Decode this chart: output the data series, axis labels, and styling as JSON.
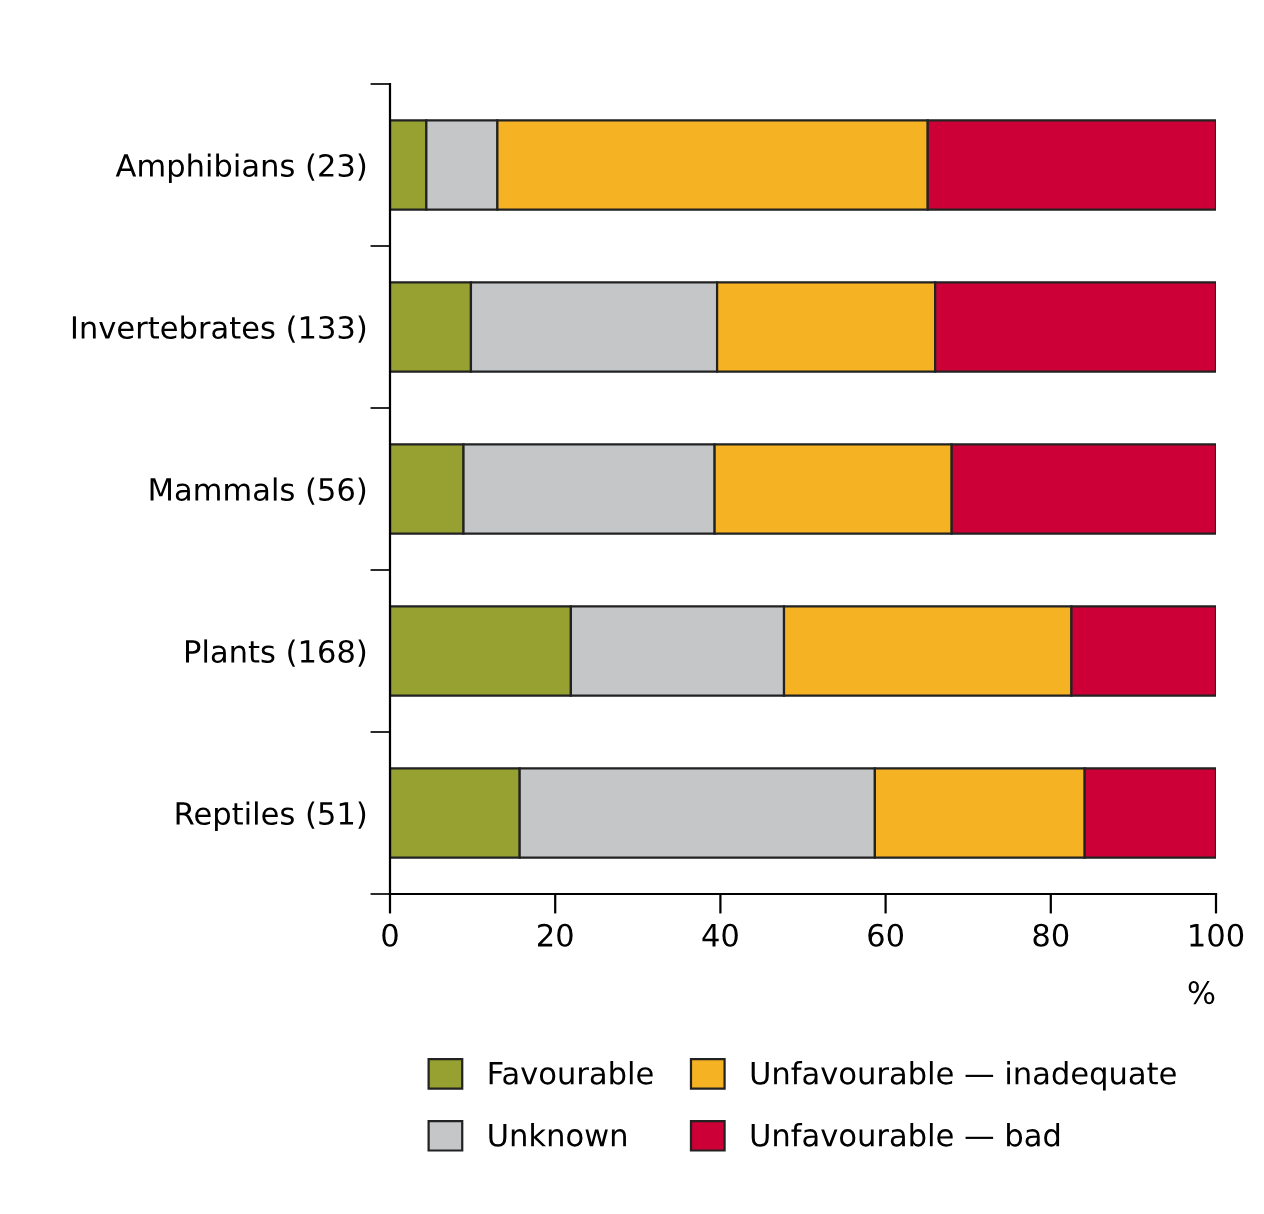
{
  "chart_data": {
    "type": "bar",
    "orientation": "horizontal",
    "stacked": true,
    "categories": [
      "Amphibians (23)",
      "Invertebrates (133)",
      "Mammals (56)",
      "Plants (168)",
      "Reptiles (51)"
    ],
    "series": [
      {
        "name": "Favourable",
        "color": "#96a131",
        "values": [
          4.4,
          9.8,
          8.9,
          21.9,
          15.7
        ]
      },
      {
        "name": "Unknown",
        "color": "#c5c6c8",
        "values": [
          8.6,
          29.8,
          30.4,
          25.8,
          43.0
        ]
      },
      {
        "name": "Unfavourable — inadequate",
        "color": "#f5b324",
        "values": [
          52.1,
          26.4,
          28.7,
          34.8,
          25.4
        ]
      },
      {
        "name": "Unfavourable — bad",
        "color": "#cc0036",
        "values": [
          34.9,
          34.0,
          32.0,
          17.5,
          15.9
        ]
      }
    ],
    "xlabel": "%",
    "xlim": [
      0,
      100
    ],
    "xticks": [
      0,
      20,
      40,
      60,
      80,
      100
    ],
    "grid": false,
    "legend": "bottom"
  }
}
